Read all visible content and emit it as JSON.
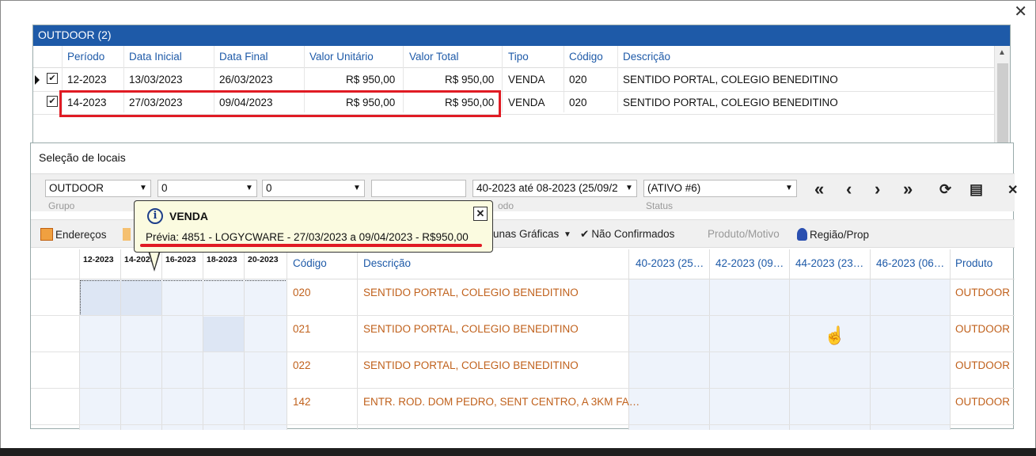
{
  "outdoor": {
    "title": "OUTDOOR (2)",
    "columns": [
      "Período",
      "Data Inicial",
      "Data Final",
      "Valor Unitário",
      "Valor Total",
      "Tipo",
      "Código",
      "Descrição"
    ],
    "rows": [
      {
        "periodo": "12-2023",
        "data_inicial": "13/03/2023",
        "data_final": "26/03/2023",
        "valor_unitario": "R$ 950,00",
        "valor_total": "R$ 950,00",
        "tipo": "VENDA",
        "codigo": "020",
        "descricao": "SENTIDO PORTAL, COLEGIO BENEDITINO",
        "checked": true
      },
      {
        "periodo": "14-2023",
        "data_inicial": "27/03/2023",
        "data_final": "09/04/2023",
        "valor_unitario": "R$ 950,00",
        "valor_total": "R$ 950,00",
        "tipo": "VENDA",
        "codigo": "020",
        "descricao": "SENTIDO PORTAL, COLEGIO BENEDITINO",
        "checked": true
      }
    ]
  },
  "selecao": {
    "title": "Seleção de locais",
    "filters": {
      "grupo_value": "OUTDOOR",
      "grupo_label": "Grupo",
      "field2_value": "0",
      "field3_value": "0",
      "field4_value": "",
      "periodo_value": "40-2023 até 08-2023 (25/09/2",
      "periodo_label_suffix": "odo",
      "status_value": "(ATIVO #6)",
      "status_label": "Status"
    },
    "nav": {
      "first": "«",
      "prev": "‹",
      "next": "›",
      "last": "»",
      "refresh": "⟳",
      "print": "▤",
      "close": "✕"
    },
    "toolbar": {
      "enderecos": "Endereços",
      "colunas_graficas": "unas Gráficas",
      "nao_confirmados": "Não Confirmados",
      "produto_motivo": "Produto/Motivo",
      "regiao_prop": "Região/Prop"
    },
    "weeks": [
      "12-2023",
      "14-2023",
      "16-2023",
      "18-2023",
      "20-2023"
    ],
    "headers": {
      "codigo": "Código",
      "descricao": "Descrição",
      "p1": "40-2023 (25…",
      "p2": "42-2023 (09…",
      "p3": "44-2023 (23…",
      "p4": "46-2023 (06…",
      "produto": "Produto"
    },
    "rows": [
      {
        "codigo": "020",
        "descricao": "SENTIDO PORTAL, COLEGIO BENEDITINO",
        "produto": "OUTDOOR"
      },
      {
        "codigo": "021",
        "descricao": "SENTIDO PORTAL, COLEGIO BENEDITINO",
        "produto": "OUTDOOR"
      },
      {
        "codigo": "022",
        "descricao": "SENTIDO PORTAL, COLEGIO BENEDITINO",
        "produto": "OUTDOOR"
      },
      {
        "codigo": "142",
        "descricao": "ENTR. ROD. DOM PEDRO, SENT CENTRO, A 3KM FA…",
        "produto": "OUTDOOR"
      }
    ]
  },
  "tooltip": {
    "title": "VENDA",
    "text": "Prévia: 4851 - LOGYCWARE - 27/03/2023 a 09/04/2023 - R$950,00",
    "close": "✕"
  },
  "colors": {
    "accent": "#1e5aa8",
    "highlight_red": "#e01b24",
    "code_orange": "#c0611c",
    "tooltip_bg": "#fbfbe0"
  }
}
